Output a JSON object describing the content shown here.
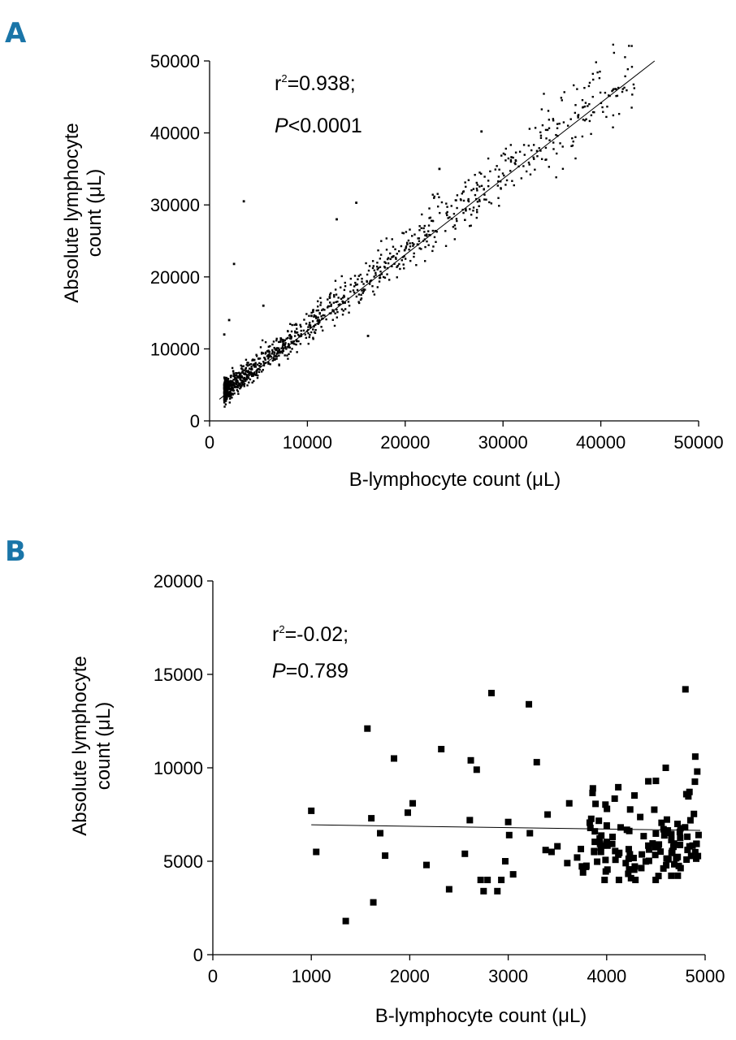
{
  "colors": {
    "panel_letter": "#1a75a8",
    "ink": "#000000"
  },
  "chart_data": [
    {
      "type": "scatter",
      "panel": "A",
      "title": "",
      "xlabel": "B-lymphocyte count (μL)",
      "ylabel_line1": "Absolute lymphocyte",
      "ylabel_line2": "count (μL)",
      "xlim": [
        0,
        50000
      ],
      "ylim": [
        0,
        50000
      ],
      "xticks": [
        0,
        10000,
        20000,
        30000,
        40000,
        50000
      ],
      "yticks": [
        0,
        10000,
        20000,
        30000,
        40000,
        50000
      ],
      "xtick_labels": [
        "0",
        "10000",
        "20000",
        "30000",
        "40000",
        "50000"
      ],
      "ytick_labels": [
        "0",
        "10000",
        "20000",
        "30000",
        "40000",
        "50000"
      ],
      "stat_r_prefix": "r",
      "stat_r_sup": "2",
      "stat_r_value": "=0.938;",
      "stat_p_symbol": "P",
      "stat_p_value": "<0.0001",
      "regression": {
        "x": [
          1000,
          45500
        ],
        "y": [
          3000,
          50000
        ]
      },
      "outliers": {
        "x": [
          3500,
          2500,
          15000,
          13000,
          16200,
          27800,
          23500,
          1500,
          2000,
          5500
        ],
        "y": [
          30500,
          21800,
          30300,
          28000,
          11800,
          40200,
          35000,
          12000,
          14000,
          16000
        ]
      },
      "seed": 20231,
      "n_points": 1150
    },
    {
      "type": "scatter",
      "panel": "B",
      "title": "",
      "xlabel": "B-lymphocyte count (μL)",
      "ylabel_line1": "Absolute lymphocyte",
      "ylabel_line2": "count (μL)",
      "xlim": [
        0,
        5000
      ],
      "ylim": [
        0,
        20000
      ],
      "xticks": [
        0,
        1000,
        2000,
        3000,
        4000,
        5000
      ],
      "yticks": [
        0,
        5000,
        10000,
        15000,
        20000
      ],
      "xtick_labels": [
        "0",
        "1000",
        "2000",
        "3000",
        "4000",
        "5000"
      ],
      "ytick_labels": [
        "0",
        "5000",
        "10000",
        "15000",
        "20000"
      ],
      "stat_r_prefix": "r",
      "stat_r_sup": "2",
      "stat_r_value": "=-0.02;",
      "stat_p_symbol": "P",
      "stat_p_value": "=0.789",
      "regression": {
        "x": [
          1000,
          4950
        ],
        "y": [
          6950,
          6650
        ]
      },
      "points": {
        "x": [
          1000,
          1050,
          1350,
          1570,
          1610,
          1630,
          1700,
          1750,
          1840,
          1980,
          2030,
          2170,
          2320,
          2400,
          2560,
          2610,
          2620,
          2680,
          2720,
          2750,
          2790,
          2830,
          2890,
          2930,
          2970,
          3000,
          3010,
          3050,
          3210,
          3220,
          3290,
          3380,
          3400,
          3440,
          3500,
          3600,
          3620,
          3700,
          3760,
          3790,
          3860,
          3880
        ],
        "y": [
          7700,
          5500,
          1800,
          12100,
          7300,
          2800,
          6500,
          5300,
          10500,
          7600,
          8100,
          4800,
          11000,
          3500,
          5400,
          7200,
          10400,
          9900,
          4000,
          3400,
          4000,
          14000,
          3400,
          4000,
          5000,
          7100,
          6400,
          4300,
          13400,
          6500,
          10300,
          5600,
          7500,
          5500,
          5800,
          4900,
          8100,
          5200,
          4400,
          4700,
          8900,
          6600
        ]
      },
      "cluster": {
        "x_range": [
          3700,
          4960
        ],
        "y_range": [
          4000,
          10500
        ],
        "count": 120,
        "seed": 777
      }
    }
  ]
}
